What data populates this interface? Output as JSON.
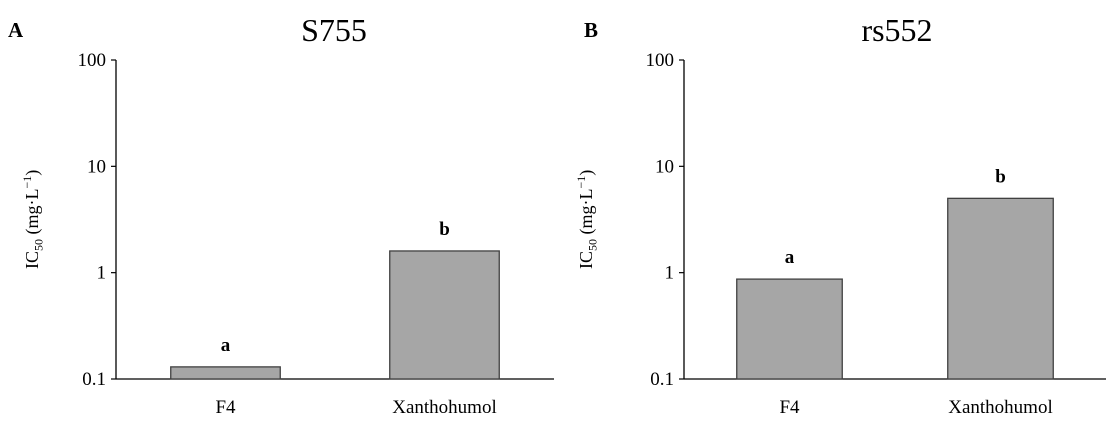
{
  "chart_data": [
    {
      "type": "bar",
      "panel_label": "A",
      "title": "S755",
      "ylabel": {
        "main": "IC",
        "sub": "50",
        "unit": " (mg·L",
        "exp": "−1",
        "close": ")"
      },
      "yscale": "log",
      "ylim": [
        0.1,
        100
      ],
      "yticks": [
        0.1,
        1,
        10,
        100
      ],
      "ytick_labels": [
        "0.1",
        "1",
        "10",
        "100"
      ],
      "categories": [
        "F4",
        "Xanthohumol"
      ],
      "values": [
        0.13,
        1.6
      ],
      "annotations": [
        "a",
        "b"
      ],
      "bar_color": "#a6a6a6",
      "grid": false
    },
    {
      "type": "bar",
      "panel_label": "B",
      "title": "rs552",
      "ylabel": {
        "main": "IC",
        "sub": "50",
        "unit": " (mg·L",
        "exp": "−1",
        "close": ")"
      },
      "yscale": "log",
      "ylim": [
        0.1,
        100
      ],
      "yticks": [
        0.1,
        1,
        10,
        100
      ],
      "ytick_labels": [
        "0.1",
        "1",
        "10",
        "100"
      ],
      "categories": [
        "F4",
        "Xanthohumol"
      ],
      "values": [
        0.87,
        5.0
      ],
      "annotations": [
        "a",
        "b"
      ],
      "bar_color": "#a6a6a6",
      "grid": false
    }
  ]
}
